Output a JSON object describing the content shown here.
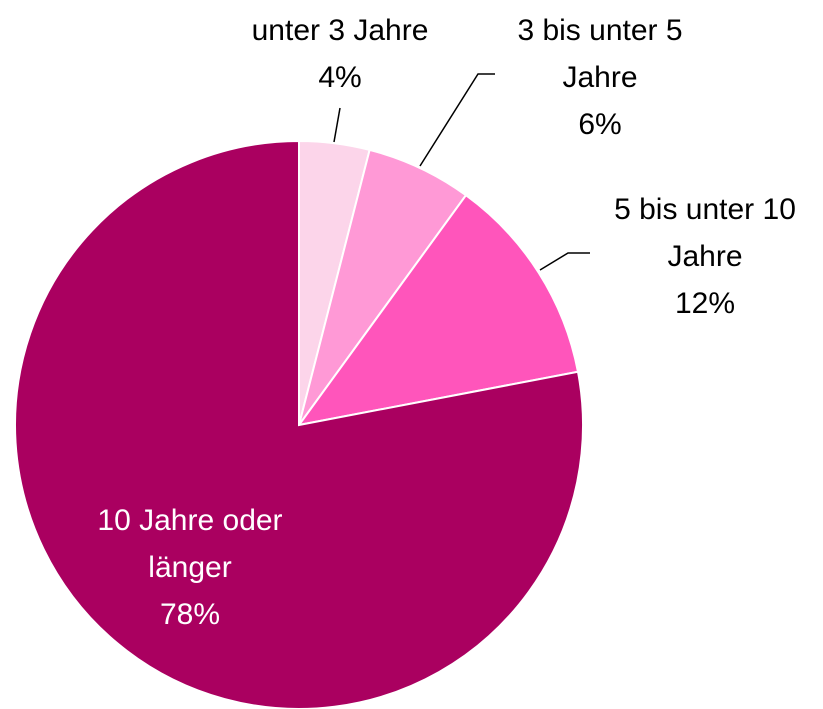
{
  "chart_data": {
    "type": "pie",
    "categories": [
      "unter 3 Jahre",
      "3 bis unter 5 Jahre",
      "5 bis unter 10 Jahre",
      "10 Jahre oder länger"
    ],
    "values": [
      4,
      6,
      12,
      78
    ],
    "value_labels": [
      "4%",
      "6%",
      "12%",
      "78%"
    ],
    "colors": [
      "#fcd5ea",
      "#ff99d6",
      "#ff55bb",
      "#aa0060"
    ]
  }
}
